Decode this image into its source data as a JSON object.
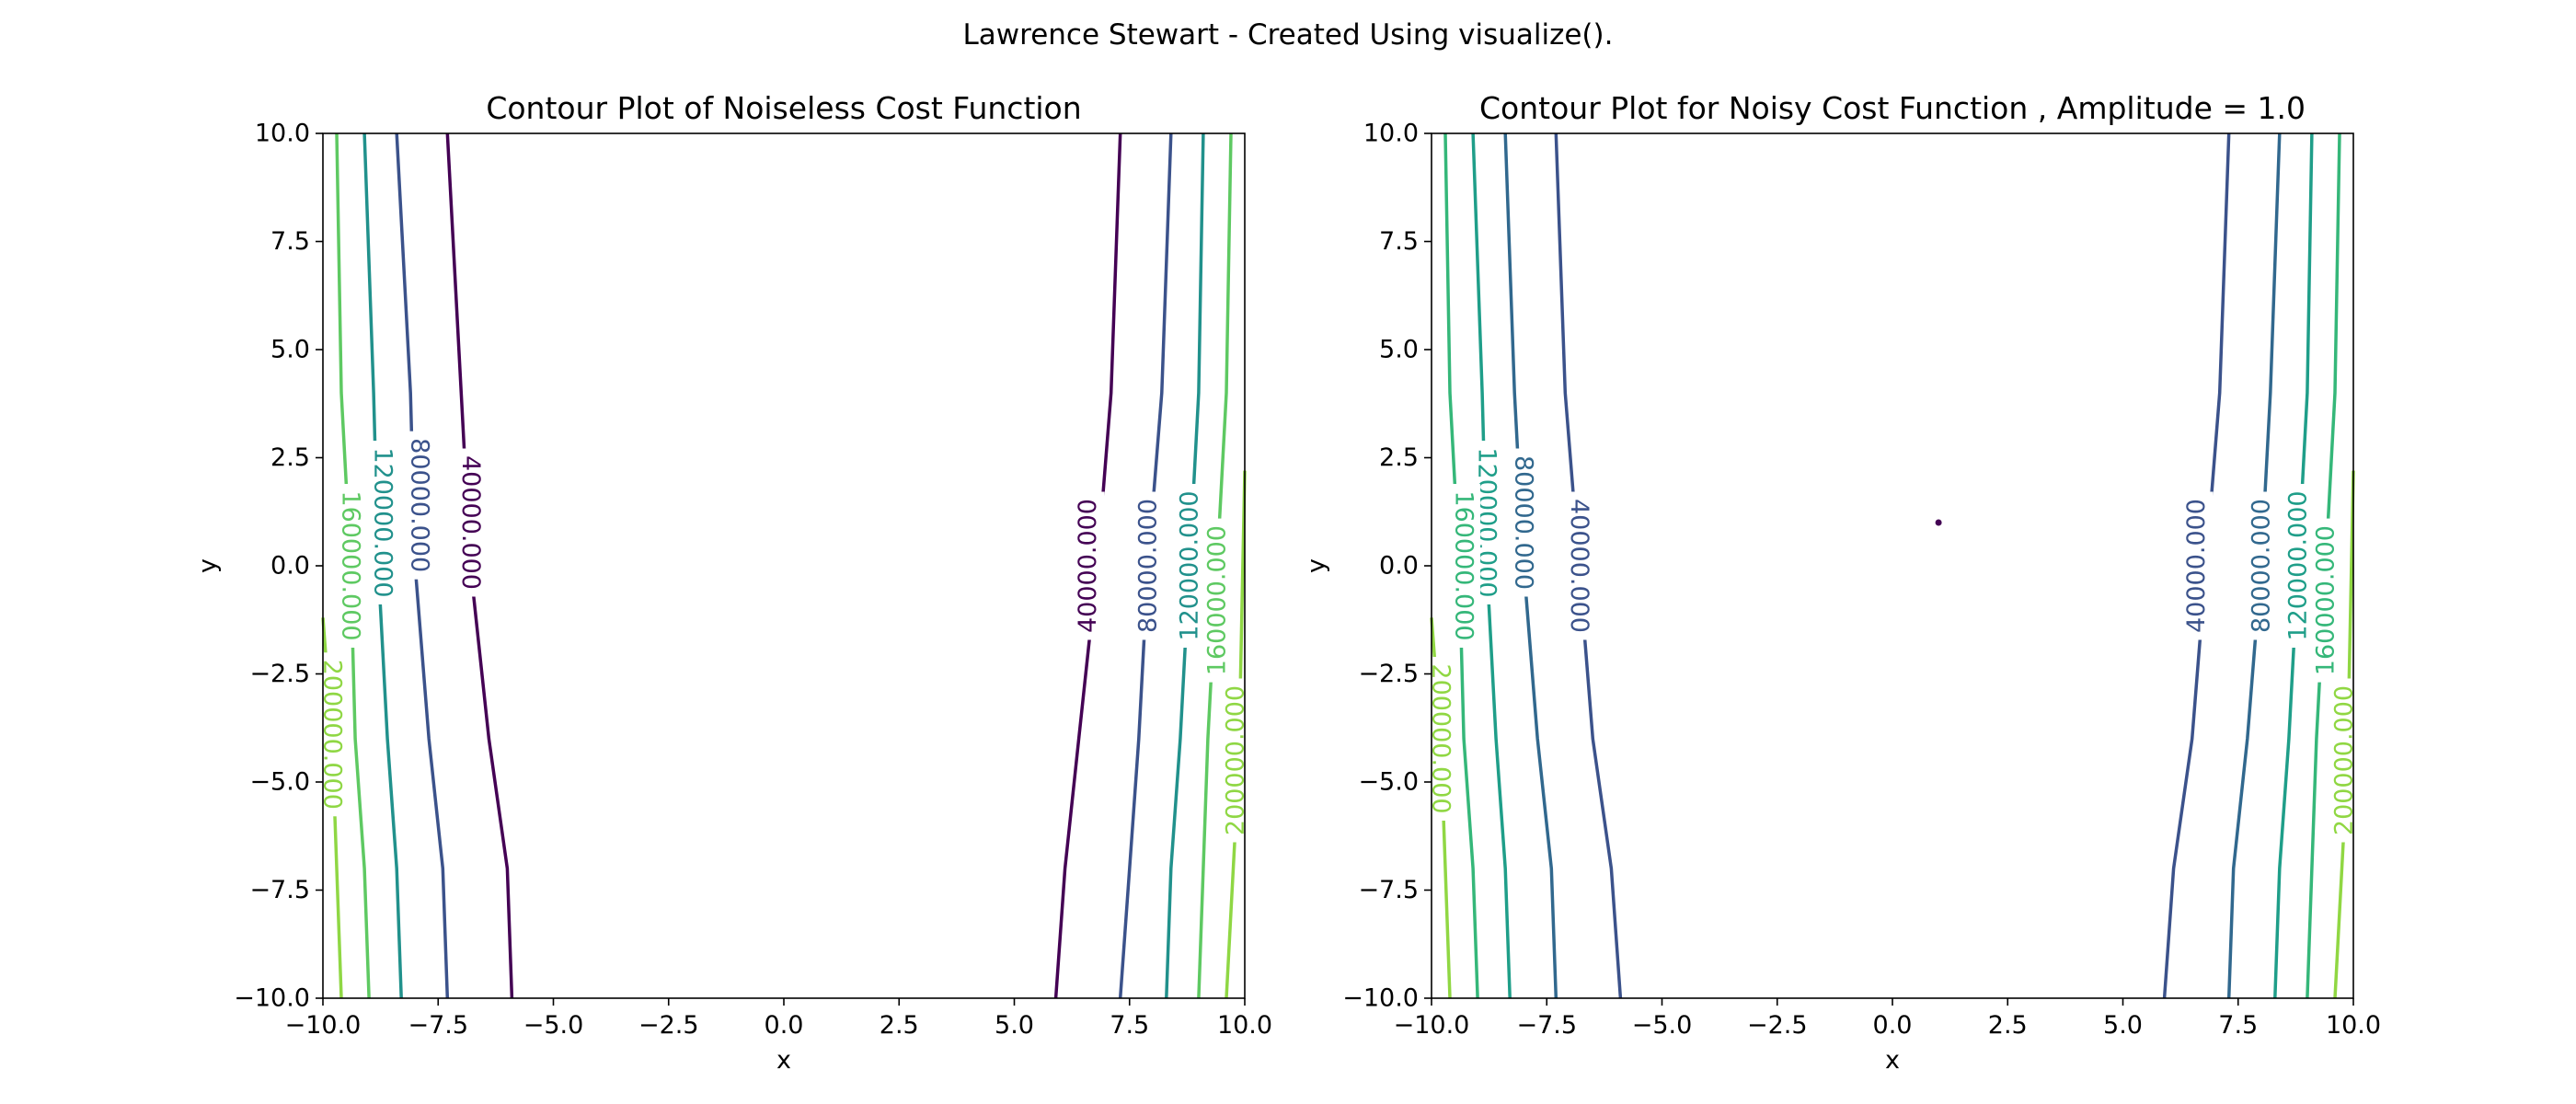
{
  "suptitle": "Lawrence Stewart - Created Using visualize().",
  "chart_data": [
    {
      "type": "contour",
      "title": "Contour Plot of Noiseless Cost Function",
      "xlabel": "x",
      "ylabel": "y",
      "xlim": [
        -10,
        10
      ],
      "ylim": [
        -10,
        10
      ],
      "xticks": [
        "−10.0",
        "−7.5",
        "−5.0",
        "−2.5",
        "0.0",
        "2.5",
        "5.0",
        "7.5",
        "10.0"
      ],
      "yticks": [
        "−10.0",
        "−7.5",
        "−5.0",
        "−2.5",
        "0.0",
        "2.5",
        "5.0",
        "7.5",
        "10.0"
      ],
      "levels": [
        {
          "value": 40000,
          "label": "40000.000",
          "color": "#440154",
          "left": [
            [
              -7.3,
              10
            ],
            [
              -7.0,
              4.0
            ],
            [
              -6.8,
              0.0
            ],
            [
              -6.4,
              -4.0
            ],
            [
              -6.0,
              -7.0
            ],
            [
              -5.9,
              -10
            ]
          ],
          "right": [
            [
              7.3,
              10
            ],
            [
              7.1,
              4.0
            ],
            [
              6.8,
              0.0
            ],
            [
              6.4,
              -4.0
            ],
            [
              6.1,
              -7.0
            ],
            [
              5.9,
              -10
            ]
          ],
          "label_left": [
            -6.8,
            1.0
          ],
          "label_right": [
            6.6,
            0.0
          ]
        },
        {
          "value": 80000,
          "label": "80000.000",
          "color": "#3b528b",
          "left": [
            [
              -8.4,
              10
            ],
            [
              -8.1,
              4.0
            ],
            [
              -8.0,
              0.0
            ],
            [
              -7.7,
              -4.0
            ],
            [
              -7.4,
              -7.0
            ],
            [
              -7.3,
              -10
            ]
          ],
          "right": [
            [
              8.4,
              10
            ],
            [
              8.2,
              4.0
            ],
            [
              7.9,
              0.0
            ],
            [
              7.7,
              -4.0
            ],
            [
              7.5,
              -7.0
            ],
            [
              7.3,
              -10
            ]
          ],
          "label_left": [
            -7.9,
            1.4
          ],
          "label_right": [
            7.9,
            0.0
          ]
        },
        {
          "value": 120000,
          "label": "120000.000",
          "color": "#21918c",
          "left": [
            [
              -9.1,
              10
            ],
            [
              -8.9,
              4.0
            ],
            [
              -8.8,
              0.0
            ],
            [
              -8.6,
              -4.0
            ],
            [
              -8.4,
              -7.0
            ],
            [
              -8.3,
              -10
            ]
          ],
          "right": [
            [
              9.1,
              10
            ],
            [
              9.0,
              4.0
            ],
            [
              8.8,
              0.0
            ],
            [
              8.6,
              -4.0
            ],
            [
              8.4,
              -7.0
            ],
            [
              8.3,
              -10
            ]
          ],
          "label_left": [
            -8.7,
            1.0
          ],
          "label_right": [
            8.8,
            0.0
          ]
        },
        {
          "value": 160000,
          "label": "160000.000",
          "color": "#5ec962",
          "left": [
            [
              -9.7,
              10
            ],
            [
              -9.6,
              4.0
            ],
            [
              -9.4,
              0.0
            ],
            [
              -9.3,
              -4.0
            ],
            [
              -9.1,
              -7.0
            ],
            [
              -9.0,
              -10
            ]
          ],
          "right": [
            [
              9.7,
              10
            ],
            [
              9.6,
              4.0
            ],
            [
              9.4,
              0.0
            ],
            [
              9.2,
              -4.0
            ],
            [
              9.1,
              -7.0
            ],
            [
              9.0,
              -10
            ]
          ],
          "label_left": [
            -9.4,
            0.0
          ],
          "label_right": [
            9.4,
            -0.8
          ]
        },
        {
          "value": 200000,
          "label": "200000.000",
          "color": "#8fd744",
          "left": [
            [
              -10,
              -1.2
            ],
            [
              -9.8,
              -4.0
            ],
            [
              -9.7,
              -7.0
            ],
            [
              -9.6,
              -10
            ]
          ],
          "right": [
            [
              10,
              2.2
            ],
            [
              9.9,
              -3.0
            ],
            [
              9.8,
              -6.0
            ],
            [
              9.7,
              -8.0
            ],
            [
              9.6,
              -10
            ]
          ],
          "label_left": [
            -9.8,
            -3.9
          ],
          "label_right": [
            9.8,
            -4.5
          ]
        }
      ]
    },
    {
      "type": "contour",
      "title": "Contour Plot for Noisy Cost Function , Amplitude = 1.0",
      "xlabel": "x",
      "ylabel": "y",
      "xlim": [
        -10,
        10
      ],
      "ylim": [
        -10,
        10
      ],
      "xticks": [
        "−10.0",
        "−7.5",
        "−5.0",
        "−2.5",
        "0.0",
        "2.5",
        "5.0",
        "7.5",
        "10.0"
      ],
      "yticks": [
        "−10.0",
        "−7.5",
        "−5.0",
        "−2.5",
        "0.0",
        "2.5",
        "5.0",
        "7.5",
        "10.0"
      ],
      "marker": {
        "x": 1.0,
        "y": 1.0,
        "color": "#440154"
      },
      "levels": [
        {
          "value": 40000,
          "label": "40000.000",
          "color": "#3b528b",
          "left": [
            [
              -7.3,
              10
            ],
            [
              -7.1,
              4.0
            ],
            [
              -6.8,
              0.0
            ],
            [
              -6.5,
              -4.0
            ],
            [
              -6.1,
              -7.0
            ],
            [
              -5.9,
              -10
            ]
          ],
          "right": [
            [
              7.3,
              10
            ],
            [
              7.1,
              4.0
            ],
            [
              6.8,
              0.0
            ],
            [
              6.5,
              -4.0
            ],
            [
              6.1,
              -7.0
            ],
            [
              5.9,
              -10
            ]
          ],
          "label_left": [
            -6.8,
            0.0
          ],
          "label_right": [
            6.6,
            0.0
          ]
        },
        {
          "value": 80000,
          "label": "80000.000",
          "color": "#31688e",
          "left": [
            [
              -8.4,
              10
            ],
            [
              -8.2,
              4.0
            ],
            [
              -8.0,
              0.0
            ],
            [
              -7.7,
              -4.0
            ],
            [
              -7.4,
              -7.0
            ],
            [
              -7.3,
              -10
            ]
          ],
          "right": [
            [
              8.4,
              10
            ],
            [
              8.2,
              4.0
            ],
            [
              8.0,
              0.0
            ],
            [
              7.7,
              -4.0
            ],
            [
              7.4,
              -7.0
            ],
            [
              7.3,
              -10
            ]
          ],
          "label_left": [
            -8.0,
            1.0
          ],
          "label_right": [
            8.0,
            0.0
          ]
        },
        {
          "value": 120000,
          "label": "120000.000",
          "color": "#1f9e89",
          "left": [
            [
              -9.1,
              10
            ],
            [
              -8.9,
              4.0
            ],
            [
              -8.8,
              0.0
            ],
            [
              -8.6,
              -4.0
            ],
            [
              -8.4,
              -7.0
            ],
            [
              -8.3,
              -10
            ]
          ],
          "right": [
            [
              9.1,
              10
            ],
            [
              9.0,
              4.0
            ],
            [
              8.8,
              0.0
            ],
            [
              8.6,
              -4.0
            ],
            [
              8.4,
              -7.0
            ],
            [
              8.3,
              -10
            ]
          ],
          "label_left": [
            -8.8,
            1.0
          ],
          "label_right": [
            8.8,
            0.0
          ]
        },
        {
          "value": 160000,
          "label": "160000.000",
          "color": "#35b779",
          "left": [
            [
              -9.7,
              10
            ],
            [
              -9.6,
              4.0
            ],
            [
              -9.4,
              0.0
            ],
            [
              -9.3,
              -4.0
            ],
            [
              -9.1,
              -7.0
            ],
            [
              -9.0,
              -10
            ]
          ],
          "right": [
            [
              9.7,
              10
            ],
            [
              9.6,
              4.0
            ],
            [
              9.4,
              0.0
            ],
            [
              9.2,
              -4.0
            ],
            [
              9.1,
              -7.0
            ],
            [
              9.0,
              -10
            ]
          ],
          "label_left": [
            -9.3,
            0.0
          ],
          "label_right": [
            9.4,
            -0.8
          ]
        },
        {
          "value": 200000,
          "label": "200000.000",
          "color": "#90d743",
          "left": [
            [
              -10,
              -1.2
            ],
            [
              -9.8,
              -4.0
            ],
            [
              -9.7,
              -7.0
            ],
            [
              -9.6,
              -10
            ]
          ],
          "right": [
            [
              10,
              2.2
            ],
            [
              9.9,
              -3.0
            ],
            [
              9.8,
              -6.0
            ],
            [
              9.7,
              -8.0
            ],
            [
              9.6,
              -10
            ]
          ],
          "label_left": [
            -9.8,
            -4.0
          ],
          "label_right": [
            9.8,
            -4.5
          ]
        }
      ]
    }
  ]
}
